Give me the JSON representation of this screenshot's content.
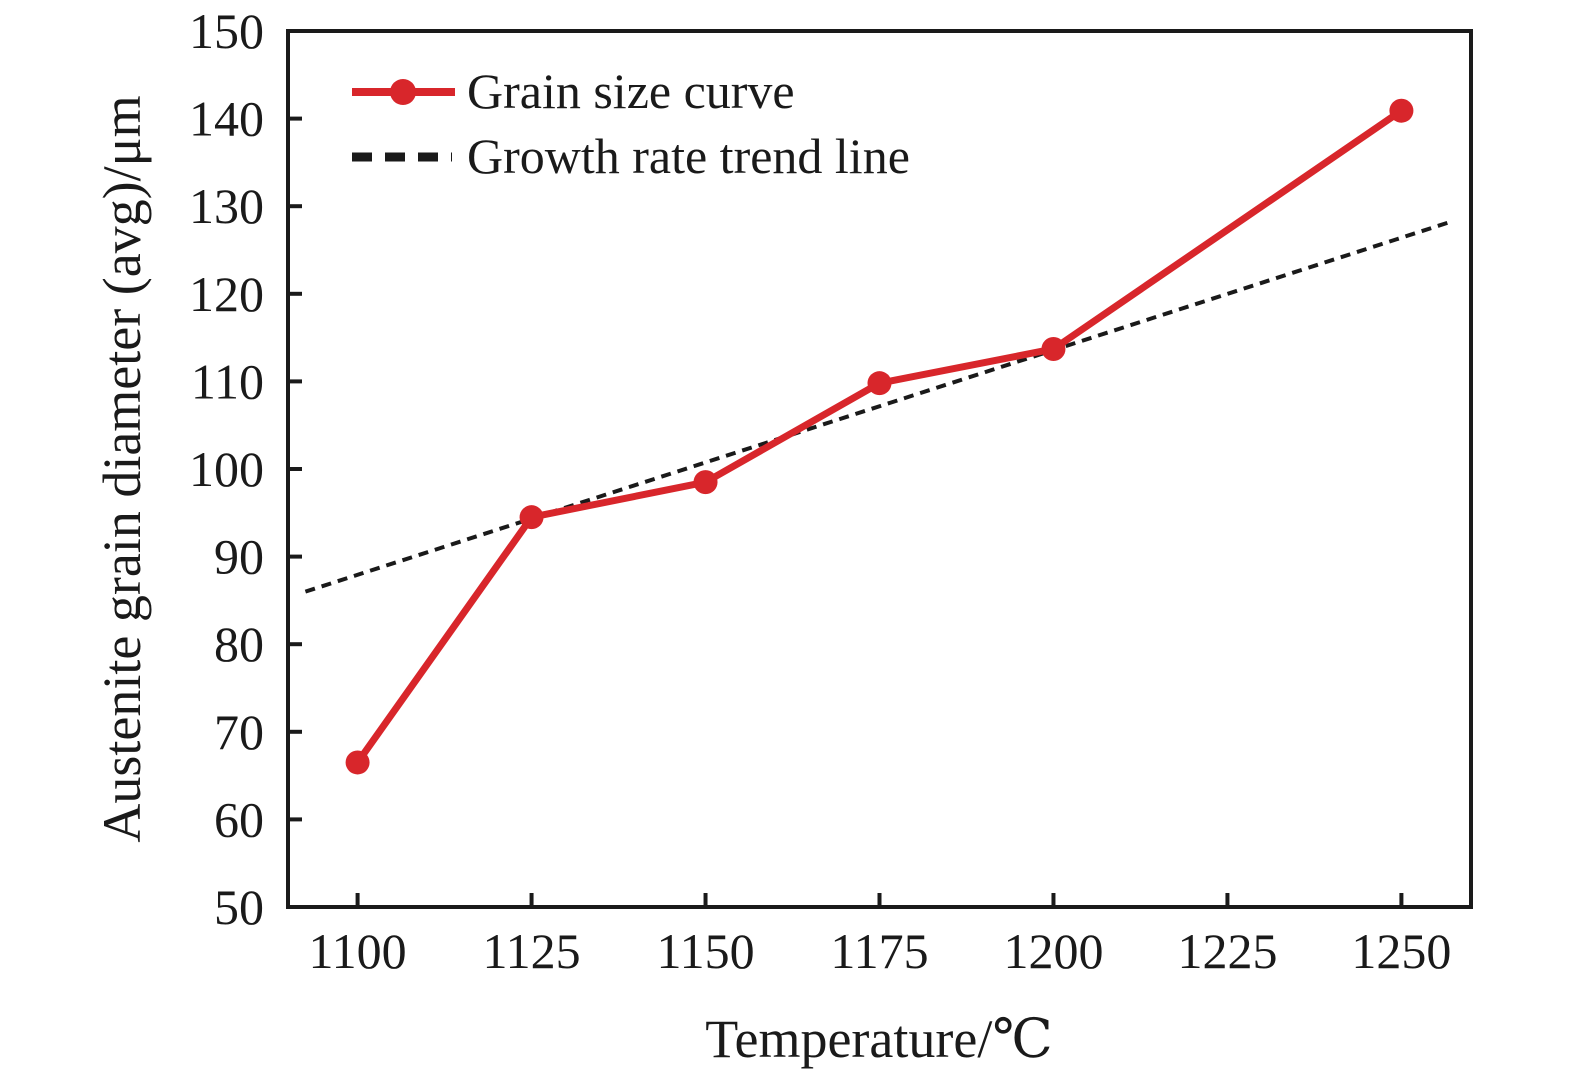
{
  "chart_data": {
    "type": "line",
    "title": "",
    "xlabel": "Temperature/℃",
    "ylabel": "Austenite grain diameter (avg)/μm",
    "xlim": [
      1090,
      1260
    ],
    "ylim": [
      50,
      150
    ],
    "x_ticks": [
      1100,
      1125,
      1150,
      1175,
      1200,
      1225,
      1250
    ],
    "y_ticks": [
      50,
      60,
      70,
      80,
      90,
      100,
      110,
      120,
      130,
      140,
      150
    ],
    "grid": false,
    "legend_position": "upper-left",
    "series": [
      {
        "name": "Grain size curve",
        "style": "solid-with-circle-markers",
        "color": "#d8262b",
        "x": [
          1100,
          1125,
          1150,
          1175,
          1200,
          1250
        ],
        "y": [
          66.5,
          94.5,
          98.5,
          109.8,
          113.7,
          140.9
        ]
      },
      {
        "name": "Growth rate trend line",
        "style": "dashed",
        "color": "#1a1a1a",
        "x": [
          1092.5,
          1257
        ],
        "y": [
          86,
          128.2
        ]
      }
    ]
  },
  "colors": {
    "series_red": "#d8262b",
    "axis_black": "#1a1a1a",
    "background": "#ffffff"
  }
}
